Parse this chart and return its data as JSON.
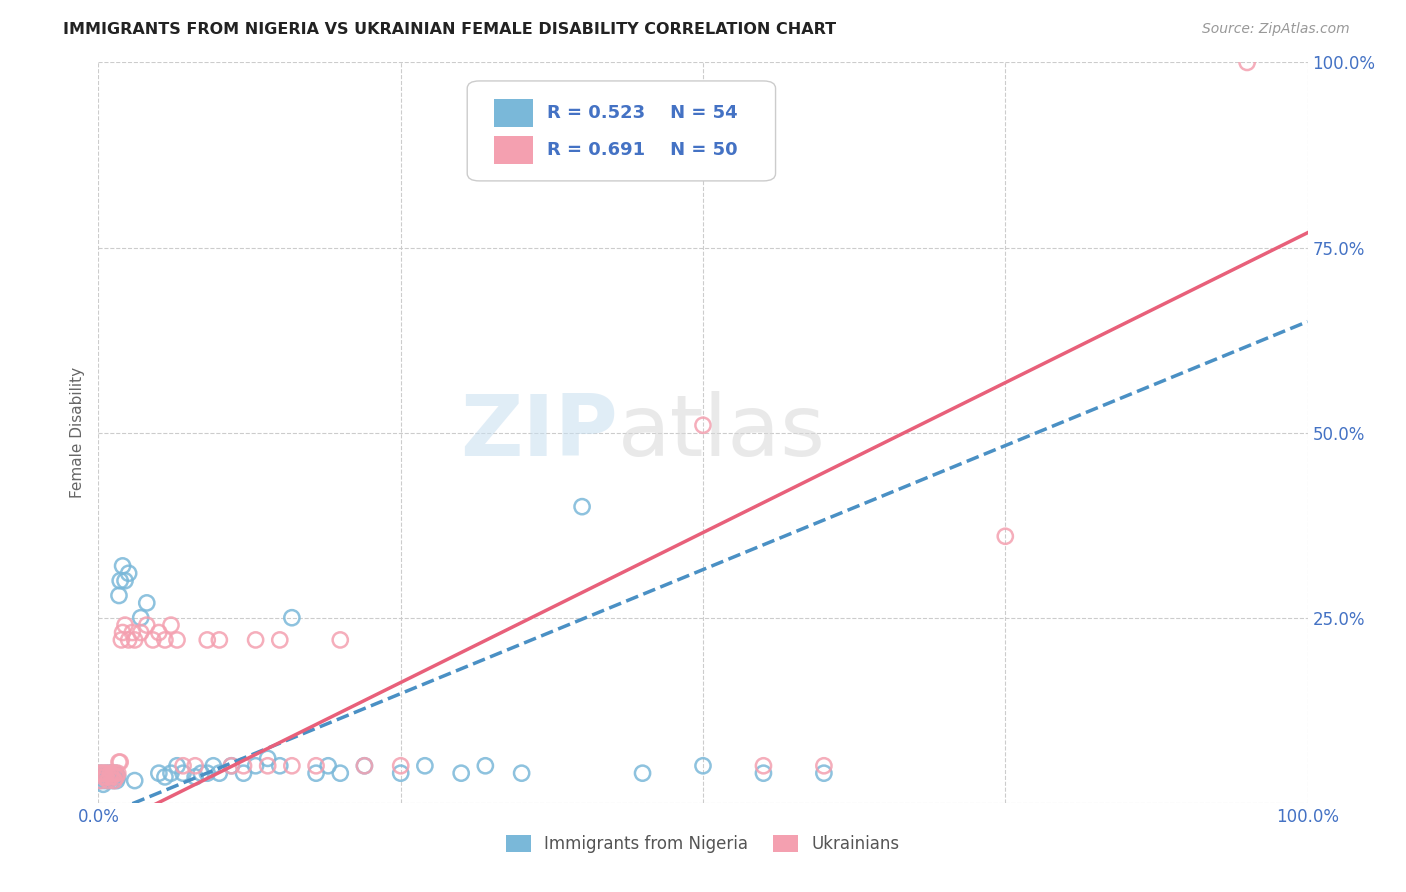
{
  "title": "IMMIGRANTS FROM NIGERIA VS UKRAINIAN FEMALE DISABILITY CORRELATION CHART",
  "source": "Source: ZipAtlas.com",
  "ylabel": "Female Disability",
  "xlim": [
    0,
    1
  ],
  "ylim": [
    0,
    1
  ],
  "nigeria_color": "#7ab8d9",
  "ukraine_color": "#f4a0b0",
  "nigeria_line_color": "#4a90c4",
  "ukraine_line_color": "#e8607a",
  "nigeria_R": 0.523,
  "nigeria_N": 54,
  "ukraine_R": 0.691,
  "ukraine_N": 50,
  "nigeria_line": [
    0.0,
    -0.02,
    1.0,
    0.65
  ],
  "ukraine_line": [
    0.0,
    -0.04,
    1.0,
    0.77
  ],
  "nigeria_scatter": [
    [
      0.001,
      0.03
    ],
    [
      0.002,
      0.04
    ],
    [
      0.003,
      0.035
    ],
    [
      0.004,
      0.025
    ],
    [
      0.005,
      0.03
    ],
    [
      0.006,
      0.04
    ],
    [
      0.007,
      0.035
    ],
    [
      0.008,
      0.03
    ],
    [
      0.009,
      0.04
    ],
    [
      0.01,
      0.035
    ],
    [
      0.011,
      0.04
    ],
    [
      0.012,
      0.03
    ],
    [
      0.013,
      0.035
    ],
    [
      0.014,
      0.04
    ],
    [
      0.015,
      0.03
    ],
    [
      0.016,
      0.035
    ],
    [
      0.017,
      0.28
    ],
    [
      0.018,
      0.3
    ],
    [
      0.02,
      0.32
    ],
    [
      0.022,
      0.3
    ],
    [
      0.025,
      0.31
    ],
    [
      0.03,
      0.03
    ],
    [
      0.035,
      0.25
    ],
    [
      0.04,
      0.27
    ],
    [
      0.05,
      0.04
    ],
    [
      0.055,
      0.035
    ],
    [
      0.06,
      0.04
    ],
    [
      0.065,
      0.05
    ],
    [
      0.07,
      0.04
    ],
    [
      0.08,
      0.035
    ],
    [
      0.085,
      0.04
    ],
    [
      0.09,
      0.04
    ],
    [
      0.095,
      0.05
    ],
    [
      0.1,
      0.04
    ],
    [
      0.11,
      0.05
    ],
    [
      0.12,
      0.04
    ],
    [
      0.13,
      0.05
    ],
    [
      0.14,
      0.06
    ],
    [
      0.15,
      0.05
    ],
    [
      0.16,
      0.25
    ],
    [
      0.18,
      0.04
    ],
    [
      0.19,
      0.05
    ],
    [
      0.2,
      0.04
    ],
    [
      0.22,
      0.05
    ],
    [
      0.25,
      0.04
    ],
    [
      0.27,
      0.05
    ],
    [
      0.3,
      0.04
    ],
    [
      0.32,
      0.05
    ],
    [
      0.35,
      0.04
    ],
    [
      0.4,
      0.4
    ],
    [
      0.45,
      0.04
    ],
    [
      0.5,
      0.05
    ],
    [
      0.55,
      0.04
    ],
    [
      0.6,
      0.04
    ]
  ],
  "ukraine_scatter": [
    [
      0.001,
      0.04
    ],
    [
      0.002,
      0.03
    ],
    [
      0.003,
      0.04
    ],
    [
      0.004,
      0.035
    ],
    [
      0.005,
      0.04
    ],
    [
      0.006,
      0.035
    ],
    [
      0.007,
      0.04
    ],
    [
      0.008,
      0.03
    ],
    [
      0.009,
      0.035
    ],
    [
      0.01,
      0.04
    ],
    [
      0.011,
      0.035
    ],
    [
      0.012,
      0.04
    ],
    [
      0.013,
      0.03
    ],
    [
      0.014,
      0.04
    ],
    [
      0.015,
      0.035
    ],
    [
      0.016,
      0.04
    ],
    [
      0.017,
      0.055
    ],
    [
      0.018,
      0.055
    ],
    [
      0.019,
      0.22
    ],
    [
      0.02,
      0.23
    ],
    [
      0.022,
      0.24
    ],
    [
      0.025,
      0.22
    ],
    [
      0.028,
      0.23
    ],
    [
      0.03,
      0.22
    ],
    [
      0.035,
      0.23
    ],
    [
      0.04,
      0.24
    ],
    [
      0.045,
      0.22
    ],
    [
      0.05,
      0.23
    ],
    [
      0.055,
      0.22
    ],
    [
      0.06,
      0.24
    ],
    [
      0.065,
      0.22
    ],
    [
      0.07,
      0.05
    ],
    [
      0.08,
      0.05
    ],
    [
      0.09,
      0.22
    ],
    [
      0.1,
      0.22
    ],
    [
      0.11,
      0.05
    ],
    [
      0.12,
      0.05
    ],
    [
      0.13,
      0.22
    ],
    [
      0.14,
      0.05
    ],
    [
      0.15,
      0.22
    ],
    [
      0.16,
      0.05
    ],
    [
      0.18,
      0.05
    ],
    [
      0.2,
      0.22
    ],
    [
      0.22,
      0.05
    ],
    [
      0.25,
      0.05
    ],
    [
      0.5,
      0.51
    ],
    [
      0.55,
      0.05
    ],
    [
      0.6,
      0.05
    ],
    [
      0.75,
      0.36
    ],
    [
      0.95,
      1.0
    ]
  ],
  "background_color": "#ffffff",
  "grid_color": "#cccccc"
}
